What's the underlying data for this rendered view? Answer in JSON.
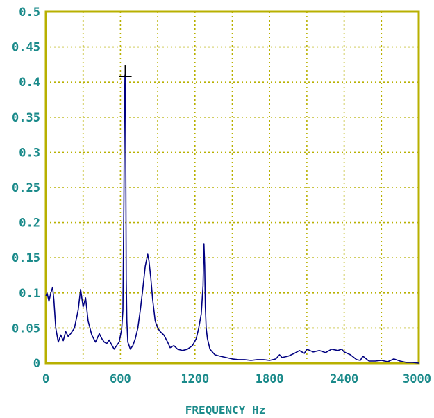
{
  "chart_data": {
    "type": "line",
    "title": "",
    "xlabel": "FREQUENCY Hz",
    "ylabel": "",
    "xlim": [
      0,
      3000
    ],
    "ylim": [
      0,
      0.5
    ],
    "x_ticks": [
      "0",
      "600",
      "1200",
      "1800",
      "2400",
      "3000"
    ],
    "y_ticks": [
      "0",
      "0.05",
      "0.1",
      "0.15",
      "0.2",
      "0.25",
      "0.3",
      "0.35",
      "0.4",
      "0.45",
      "0.5"
    ],
    "grid": true,
    "cursor_marker": {
      "x": 640,
      "y": 0.412
    },
    "series": [
      {
        "color": "#000080",
        "x": [
          0,
          10,
          25,
          40,
          55,
          65,
          80,
          100,
          120,
          140,
          160,
          180,
          200,
          230,
          260,
          280,
          300,
          320,
          340,
          370,
          400,
          430,
          450,
          470,
          490,
          510,
          530,
          550,
          570,
          590,
          610,
          620,
          628,
          633,
          637,
          640,
          643,
          647,
          652,
          660,
          680,
          700,
          720,
          740,
          760,
          780,
          800,
          820,
          830,
          845,
          860,
          880,
          900,
          920,
          950,
          980,
          1000,
          1030,
          1060,
          1100,
          1140,
          1180,
          1210,
          1230,
          1250,
          1265,
          1272,
          1278,
          1283,
          1290,
          1300,
          1320,
          1360,
          1400,
          1450,
          1500,
          1550,
          1600,
          1650,
          1700,
          1750,
          1800,
          1850,
          1880,
          1900,
          1950,
          2000,
          2040,
          2080,
          2100,
          2150,
          2200,
          2250,
          2300,
          2350,
          2380,
          2400,
          2450,
          2500,
          2530,
          2550,
          2600,
          2650,
          2700,
          2750,
          2800,
          2850,
          2900,
          2950,
          3000
        ],
        "y": [
          0.095,
          0.1,
          0.088,
          0.1,
          0.108,
          0.09,
          0.05,
          0.03,
          0.04,
          0.032,
          0.045,
          0.038,
          0.042,
          0.05,
          0.075,
          0.105,
          0.08,
          0.093,
          0.06,
          0.04,
          0.03,
          0.042,
          0.035,
          0.03,
          0.028,
          0.033,
          0.026,
          0.02,
          0.025,
          0.03,
          0.048,
          0.075,
          0.23,
          0.36,
          0.41,
          0.4,
          0.3,
          0.12,
          0.06,
          0.03,
          0.02,
          0.025,
          0.035,
          0.05,
          0.075,
          0.105,
          0.138,
          0.155,
          0.145,
          0.12,
          0.09,
          0.06,
          0.05,
          0.045,
          0.04,
          0.03,
          0.022,
          0.025,
          0.02,
          0.018,
          0.02,
          0.025,
          0.035,
          0.05,
          0.07,
          0.11,
          0.17,
          0.14,
          0.08,
          0.05,
          0.035,
          0.02,
          0.012,
          0.01,
          0.008,
          0.006,
          0.005,
          0.005,
          0.004,
          0.005,
          0.005,
          0.004,
          0.006,
          0.012,
          0.008,
          0.01,
          0.014,
          0.018,
          0.014,
          0.02,
          0.016,
          0.018,
          0.015,
          0.02,
          0.018,
          0.02,
          0.016,
          0.012,
          0.005,
          0.004,
          0.01,
          0.003,
          0.003,
          0.004,
          0.002,
          0.006,
          0.003,
          0.001,
          0.001,
          0.0
        ]
      }
    ]
  }
}
